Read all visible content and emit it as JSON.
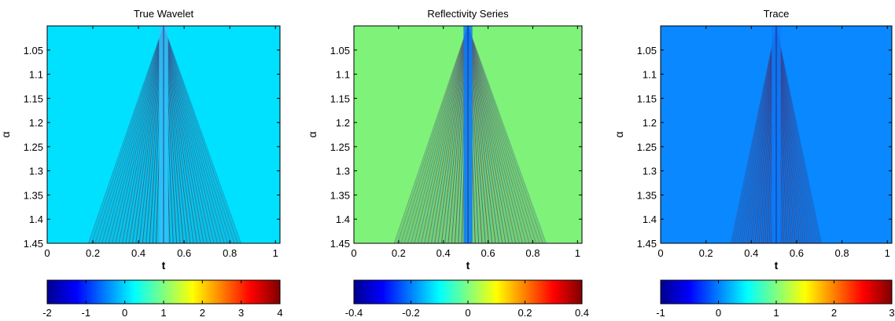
{
  "chart_data": [
    {
      "type": "heatmap",
      "title": "True Wavelet",
      "xlabel": "t",
      "ylabel": "α",
      "xlim": [
        0,
        1.02
      ],
      "ylim": [
        1.0,
        1.45
      ],
      "xticks": [
        "0",
        "0.2",
        "0.4",
        "0.6",
        "0.8",
        "1"
      ],
      "yticks": [
        "1.05",
        "1.1",
        "1.15",
        "1.2",
        "1.25",
        "1.3",
        "1.35",
        "1.4",
        "1.45"
      ],
      "background_value": 0.05,
      "background_color": "#00e1ff",
      "apex": [
        0.51,
        1.0
      ],
      "base_left": [
        0.18,
        1.45
      ],
      "base_right": [
        0.85,
        1.45
      ],
      "center_band": [
        0.49,
        0.53
      ],
      "center_color": "#2fc8ff",
      "colorbar": {
        "min": -2,
        "max": 4,
        "ticks": [
          "-2",
          "-1",
          "0",
          "1",
          "2",
          "3",
          "4"
        ]
      }
    },
    {
      "type": "heatmap",
      "title": "Reflectivity Series",
      "xlabel": "t",
      "ylabel": "α",
      "xlim": [
        0,
        1.02
      ],
      "ylim": [
        1.0,
        1.45
      ],
      "xticks": [
        "0",
        "0.2",
        "0.4",
        "0.6",
        "0.8",
        "1"
      ],
      "yticks": [
        "1.05",
        "1.1",
        "1.15",
        "1.2",
        "1.25",
        "1.3",
        "1.35",
        "1.4",
        "1.45"
      ],
      "background_value": 0.0,
      "background_color": "#7ff27a",
      "apex": [
        0.51,
        1.0
      ],
      "base_left": [
        0.18,
        1.45
      ],
      "base_right": [
        0.86,
        1.45
      ],
      "center_band": [
        0.49,
        0.53
      ],
      "center_color": "#0a7cff",
      "colorbar": {
        "min": -0.4,
        "max": 0.4,
        "ticks": [
          "-0.4",
          "-0.2",
          "0",
          "0.2",
          "0.4"
        ]
      }
    },
    {
      "type": "heatmap",
      "title": "Trace",
      "xlabel": "t",
      "ylabel": "α",
      "xlim": [
        0,
        1.02
      ],
      "ylim": [
        1.0,
        1.45
      ],
      "xticks": [
        "0",
        "0.2",
        "0.4",
        "0.6",
        "0.8",
        "1"
      ],
      "yticks": [
        "1.05",
        "1.1",
        "1.15",
        "1.2",
        "1.25",
        "1.3",
        "1.35",
        "1.4",
        "1.45"
      ],
      "background_value": 0.0,
      "background_color": "#0a88ff",
      "apex": [
        0.51,
        1.0
      ],
      "base_left": [
        0.31,
        1.45
      ],
      "base_right": [
        0.71,
        1.45
      ],
      "center_band": [
        0.49,
        0.53
      ],
      "center_color": "#0a7cff",
      "colorbar": {
        "min": -1,
        "max": 3,
        "ticks": [
          "-1",
          "0",
          "1",
          "2",
          "3"
        ]
      }
    }
  ]
}
